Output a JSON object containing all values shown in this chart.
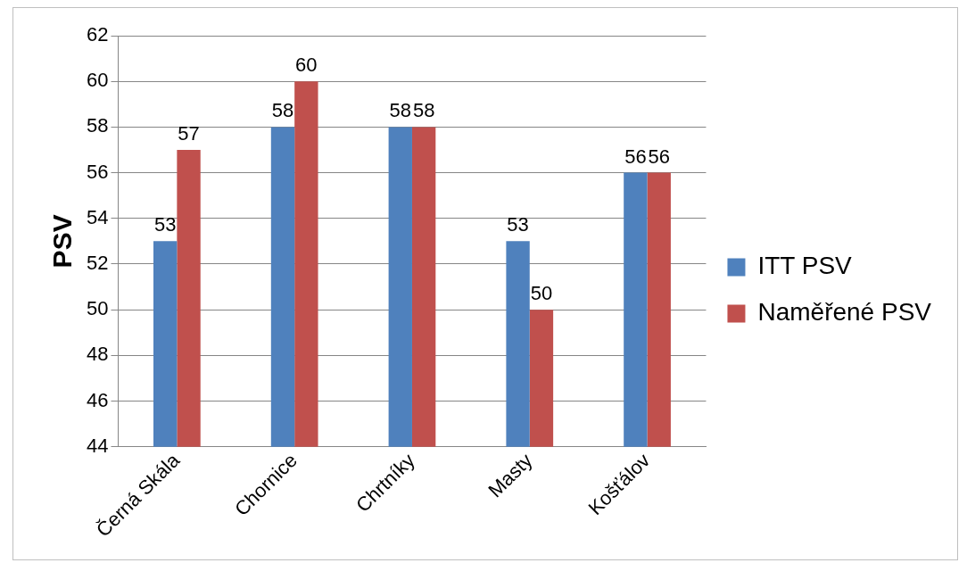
{
  "chart_data": {
    "type": "bar",
    "ylabel": "PSV",
    "categories": [
      "Černá Skála",
      "Chornice",
      "Chrtníky",
      "Masty",
      "Košťálov"
    ],
    "series": [
      {
        "name": "ITT PSV",
        "color": "#4f81bd",
        "values": [
          53,
          58,
          58,
          53,
          56
        ]
      },
      {
        "name": "Naměřené PSV",
        "color": "#c0504d",
        "values": [
          57,
          60,
          58,
          50,
          56
        ]
      }
    ],
    "ylim": [
      44,
      62
    ],
    "yticks": [
      44,
      46,
      48,
      50,
      52,
      54,
      56,
      58,
      60,
      62
    ],
    "grid": "y",
    "legend": "right",
    "data_labels": true
  }
}
